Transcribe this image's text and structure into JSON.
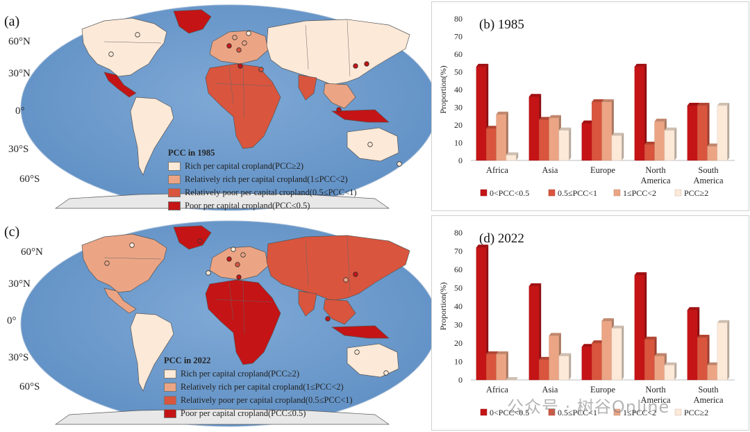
{
  "maps": [
    {
      "id": "a",
      "letter": "(a)",
      "lat_labels": [
        "60°N",
        "30°N",
        "0°",
        "30°S",
        "60°S"
      ],
      "legend_title": "PCC in 1985",
      "legend": [
        {
          "label": "Rich per capital cropland(PCC≥2)",
          "color": "#fde9d8"
        },
        {
          "label": "Relatively rich per capital cropland(1≤PCC<2)",
          "color": "#eba585"
        },
        {
          "label": "Relatively poor per capital cropland(0.5≤PCC<1)",
          "color": "#d9553e"
        },
        {
          "label": "Poor per capital cropland(PCC≤0.5)",
          "color": "#c41416"
        }
      ]
    },
    {
      "id": "c",
      "letter": "(c)",
      "lat_labels": [
        "60°N",
        "30°N",
        "0°",
        "30°S",
        "60°S"
      ],
      "legend_title": "PCC in 2022",
      "legend": [
        {
          "label": "Rich per capital cropland(PCC≥2)",
          "color": "#fde9d8"
        },
        {
          "label": "Relatively rich per capital cropland(1≤PCC<2)",
          "color": "#eba585"
        },
        {
          "label": "Relatively poor per capital cropland(0.5≤PCC<1)",
          "color": "#d9553e"
        },
        {
          "label": "Poor per capital cropland(PCC≤0.5)",
          "color": "#c41416"
        }
      ]
    }
  ],
  "colors": {
    "ocean": "#7fa9d6",
    "ocean_dark": "#5f8fc4",
    "antarctica": "#e8e8e8",
    "c1": "#c41416",
    "c2": "#d9553e",
    "c3": "#eba585",
    "c4": "#fde9d8"
  },
  "chart_data": [
    {
      "type": "bar",
      "title": "(b) 1985",
      "ylabel": "Proportion(%)",
      "xlabel": "",
      "ylim": [
        0,
        80
      ],
      "yticks": [
        0,
        10,
        20,
        30,
        40,
        50,
        60,
        70,
        80
      ],
      "categories": [
        [
          "Africa"
        ],
        [
          "Asia"
        ],
        [
          "Europe"
        ],
        [
          "North",
          "America"
        ],
        [
          "South",
          "America"
        ]
      ],
      "legend_position": "bottom",
      "series": [
        {
          "name": "0<PCC<0.5",
          "color": "#c41416",
          "values": [
            53,
            36,
            21,
            53,
            31
          ]
        },
        {
          "name": "0.5≤PCC<1",
          "color": "#d9553e",
          "values": [
            18,
            23,
            33,
            9,
            31
          ]
        },
        {
          "name": "1≤PCC<2",
          "color": "#eba585",
          "values": [
            26,
            24,
            33,
            22,
            8
          ]
        },
        {
          "name": "PCC≥2",
          "color": "#fde9d8",
          "values": [
            3,
            17,
            14,
            17,
            31
          ]
        }
      ]
    },
    {
      "type": "bar",
      "title": "(d) 2022",
      "ylabel": "Proportion(%)",
      "xlabel": "",
      "ylim": [
        0,
        80
      ],
      "yticks": [
        0,
        10,
        20,
        30,
        40,
        50,
        60,
        70,
        80
      ],
      "categories": [
        [
          "Africa"
        ],
        [
          "Asia"
        ],
        [
          "Europe"
        ],
        [
          "North",
          "America"
        ],
        [
          "South",
          "America"
        ]
      ],
      "legend_position": "bottom",
      "series": [
        {
          "name": "0<PCC<0.5",
          "color": "#c41416",
          "values": [
            72,
            51,
            18,
            57,
            38
          ]
        },
        {
          "name": "0.5≤PCC<1",
          "color": "#d9553e",
          "values": [
            14,
            11,
            20,
            22,
            23
          ]
        },
        {
          "name": "1≤PCC<2",
          "color": "#eba585",
          "values": [
            14,
            24,
            32,
            13,
            8
          ]
        },
        {
          "name": "PCC≥2",
          "color": "#fde9d8",
          "values": [
            0,
            13,
            28,
            8,
            31
          ]
        }
      ]
    }
  ],
  "watermark": "公众号 · 树谷Online"
}
